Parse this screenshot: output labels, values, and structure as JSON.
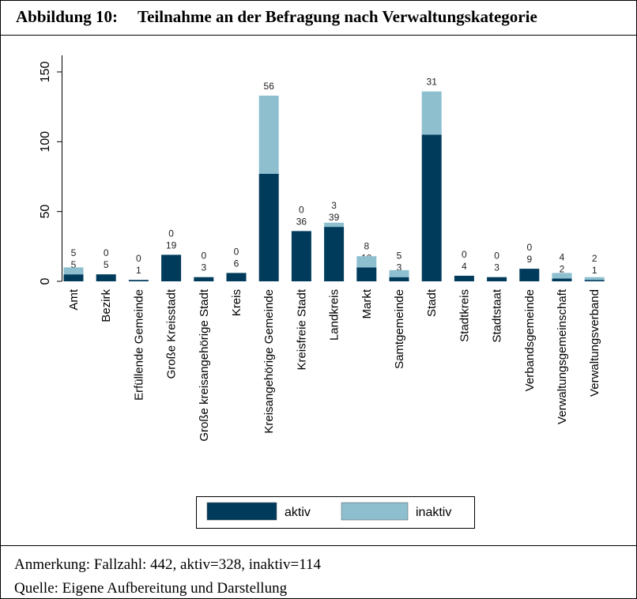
{
  "figure": {
    "label": "Abbildung 10:",
    "title": "Teilnahme an der Befragung nach Verwaltungskategorie"
  },
  "chart_data": {
    "type": "stacked_bar",
    "categories": [
      "Amt",
      "Bezirk",
      "Erfüllende Gemeinde",
      "Große Kreisstadt",
      "Große kreisangehörige Stadt",
      "Kreis",
      "Kreisangehörige Gemeinde",
      "Kreisfreie Stadt",
      "Landkreis",
      "Markt",
      "Samtgemeinde",
      "Stadt",
      "Stadtkreis",
      "Stadtstaat",
      "Verbandsgemeinde",
      "Verwaltungsgemeinschaft",
      "Verwaltungsverband"
    ],
    "series": [
      {
        "name": "aktiv",
        "color": "#003b5c",
        "values": [
          5,
          5,
          1,
          19,
          3,
          6,
          77,
          36,
          39,
          10,
          3,
          105,
          4,
          3,
          9,
          2,
          1
        ]
      },
      {
        "name": "inaktiv",
        "color": "#8dbfcf",
        "values": [
          5,
          0,
          0,
          0,
          0,
          0,
          56,
          0,
          3,
          8,
          5,
          31,
          0,
          0,
          0,
          4,
          2
        ]
      }
    ],
    "ylim": [
      0,
      150
    ],
    "yticks": [
      0,
      50,
      100,
      150
    ],
    "grid": false,
    "legend": "bottom"
  },
  "notes": [
    "Anmerkung: Fallzahl: 442, aktiv=328, inaktiv=114",
    "Quelle: Eigene Aufbereitung und Darstellung"
  ]
}
